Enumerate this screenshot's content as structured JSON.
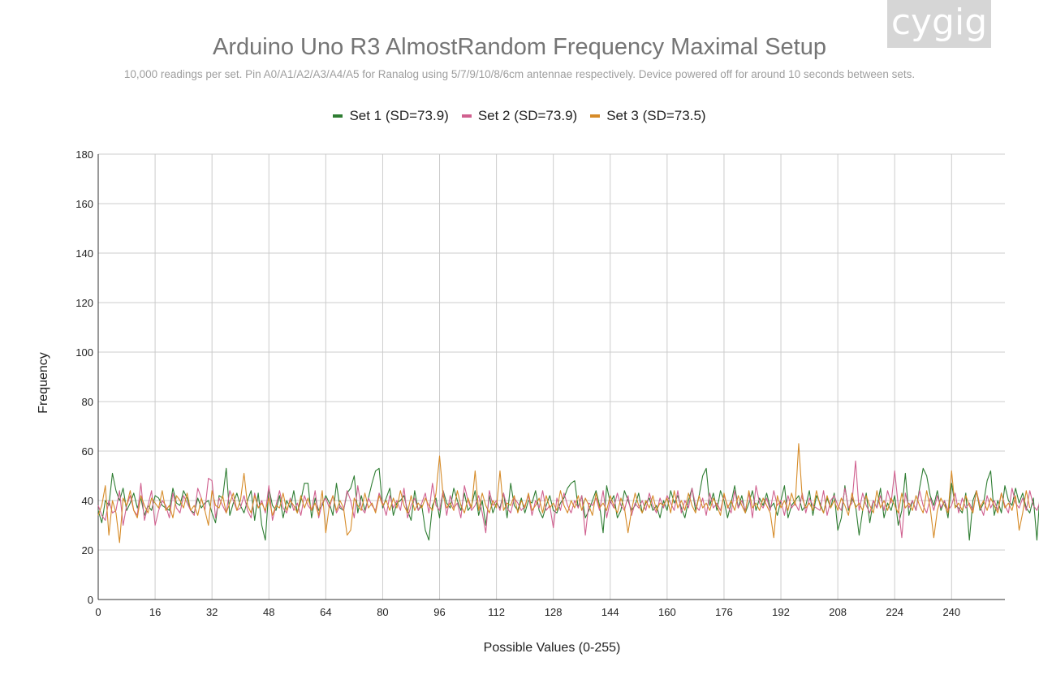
{
  "logo_text": "cygig",
  "chart_data": {
    "type": "line",
    "title": "Arduino Uno R3 AlmostRandom Frequency Maximal Setup",
    "subtitle": "10,000 readings per set. Pin A0/A1/A2/A3/A4/A5 for Ranalog using 5/7/9/10/8/6cm antennae respectively. Device powered off for around 10 seconds between sets.",
    "xlabel": "Possible Values (0-255)",
    "ylabel": "Frequency",
    "xlim": [
      0,
      255
    ],
    "ylim": [
      0,
      180
    ],
    "xticks": [
      0,
      16,
      32,
      48,
      64,
      80,
      96,
      112,
      128,
      144,
      160,
      176,
      192,
      208,
      224,
      240
    ],
    "yticks": [
      0,
      20,
      40,
      60,
      80,
      100,
      120,
      140,
      160,
      180
    ],
    "grid": true,
    "legend_position": "top",
    "colors": [
      "#2e7d32",
      "#d0608f",
      "#d68b28"
    ],
    "series": [
      {
        "name": "Set 1 (SD=73.9)",
        "color": "#2e7d32",
        "values": [
          36,
          31,
          40,
          38,
          51,
          44,
          40,
          45,
          36,
          39,
          43,
          37,
          41,
          34,
          38,
          36,
          42,
          41,
          38,
          37,
          36,
          45,
          39,
          38,
          44,
          41,
          36,
          35,
          41,
          37,
          39,
          40,
          35,
          31,
          42,
          41,
          53,
          34,
          39,
          43,
          38,
          35,
          40,
          44,
          32,
          43,
          30,
          24,
          45,
          38,
          36,
          42,
          33,
          40,
          37,
          44,
          35,
          40,
          47,
          47,
          33,
          41,
          36,
          38,
          42,
          39,
          34,
          47,
          37,
          36,
          43,
          45,
          50,
          35,
          42,
          36,
          41,
          47,
          52,
          53,
          37,
          41,
          45,
          34,
          39,
          40,
          42,
          36,
          32,
          44,
          36,
          38,
          28,
          24,
          38,
          41,
          33,
          44,
          39,
          37,
          45,
          40,
          36,
          43,
          36,
          38,
          44,
          34,
          40,
          30,
          42,
          35,
          39,
          37,
          43,
          33,
          47,
          38,
          36,
          41,
          35,
          40,
          39,
          44,
          36,
          33,
          38,
          42,
          36,
          35,
          39,
          41,
          45,
          47,
          48,
          37,
          42,
          33,
          36,
          40,
          44,
          38,
          27,
          46,
          39,
          42,
          33,
          36,
          44,
          40,
          36,
          38,
          43,
          35,
          39,
          41,
          36,
          38,
          33,
          40,
          36,
          44,
          39,
          42,
          37,
          33,
          40,
          45,
          36,
          42,
          50,
          53,
          38,
          43,
          36,
          44,
          40,
          33,
          39,
          46,
          37,
          42,
          35,
          39,
          44,
          36,
          41,
          38,
          43,
          37,
          39,
          34,
          40,
          46,
          33,
          38,
          40,
          42,
          36,
          38,
          44,
          34,
          42,
          39,
          35,
          41,
          37,
          43,
          28,
          33,
          46,
          36,
          41,
          38,
          26,
          36,
          43,
          31,
          40,
          37,
          45,
          33,
          39,
          36,
          42,
          30,
          36,
          51,
          34,
          40,
          36,
          45,
          53,
          50,
          42,
          38,
          44,
          36,
          40,
          33,
          47,
          38,
          37,
          35,
          43,
          24,
          40,
          44,
          36,
          39,
          48,
          52,
          34,
          40,
          35,
          46,
          40,
          38,
          45,
          39,
          43,
          37,
          35,
          41,
          24,
          46,
          45,
          44,
          39,
          43
        ],
        "note": "values estimated from plot"
      },
      {
        "name": "Set 2 (SD=73.9)",
        "color": "#d0608f",
        "values": [
          38,
          34,
          32,
          40,
          35,
          36,
          44,
          30,
          38,
          42,
          36,
          34,
          47,
          32,
          38,
          44,
          30,
          36,
          40,
          38,
          33,
          43,
          37,
          35,
          42,
          39,
          36,
          34,
          45,
          41,
          36,
          49,
          48,
          33,
          41,
          38,
          35,
          44,
          40,
          36,
          37,
          42,
          36,
          33,
          43,
          37,
          40,
          35,
          46,
          32,
          38,
          44,
          37,
          35,
          41,
          36,
          39,
          34,
          42,
          38,
          36,
          44,
          33,
          39,
          41,
          37,
          42,
          35,
          38,
          36,
          44,
          40,
          33,
          46,
          37,
          35,
          41,
          38,
          36,
          43,
          39,
          34,
          42,
          37,
          40,
          36,
          45,
          33,
          38,
          41,
          36,
          39,
          43,
          35,
          47,
          38,
          36,
          44,
          34,
          42,
          37,
          39,
          33,
          46,
          40,
          36,
          38,
          42,
          35,
          27,
          44,
          38,
          40,
          36,
          43,
          37,
          35,
          41,
          39,
          36,
          38,
          42,
          34,
          40,
          37,
          44,
          36,
          38,
          29,
          41,
          36,
          43,
          38,
          35,
          40,
          37,
          42,
          26,
          39,
          38,
          41,
          36,
          44,
          33,
          40,
          37,
          43,
          38,
          36,
          42,
          34,
          39,
          37,
          40,
          36,
          43,
          38,
          35,
          41,
          37,
          42,
          39,
          36,
          44,
          35,
          40,
          37,
          45,
          38,
          36,
          41,
          34,
          43,
          37,
          39,
          36,
          42,
          38,
          35,
          44,
          37,
          40,
          36,
          43,
          33,
          46,
          39,
          37,
          41,
          36,
          44,
          38,
          40,
          34,
          42,
          37,
          39,
          36,
          43,
          35,
          41,
          38,
          37,
          36,
          44,
          34,
          40,
          42,
          38,
          36,
          45,
          37,
          39,
          56,
          36,
          43,
          38,
          35,
          40,
          37,
          42,
          36,
          44,
          39,
          52,
          38,
          25,
          43,
          37,
          40,
          36,
          44,
          38,
          35,
          41,
          36,
          42,
          37,
          40,
          36,
          38,
          43,
          35,
          41,
          37,
          39,
          36,
          44,
          38,
          34,
          42,
          37,
          40,
          36,
          43,
          38,
          35,
          45,
          39,
          37,
          41,
          36,
          44,
          38,
          36,
          40
        ]
      },
      {
        "name": "Set 3 (SD=73.5)",
        "color": "#d68b28",
        "values": [
          34,
          38,
          46,
          26,
          40,
          35,
          23,
          41,
          38,
          44,
          36,
          33,
          42,
          38,
          35,
          41,
          39,
          37,
          44,
          36,
          38,
          33,
          42,
          40,
          37,
          43,
          36,
          38,
          34,
          41,
          36,
          30,
          44,
          38,
          37,
          42,
          35,
          39,
          43,
          36,
          40,
          51,
          38,
          35,
          42,
          37,
          39,
          36,
          41,
          34,
          38,
          37,
          43,
          36,
          40,
          38,
          35,
          42,
          37,
          41,
          36,
          39,
          34,
          44,
          27,
          38,
          42,
          36,
          40,
          37,
          26,
          28,
          41,
          38,
          36,
          43,
          37,
          39,
          35,
          42,
          38,
          40,
          36,
          41,
          37,
          44,
          38,
          35,
          42,
          36,
          39,
          37,
          41,
          38,
          36,
          43,
          58,
          42,
          37,
          39,
          36,
          44,
          38,
          35,
          41,
          37,
          52,
          36,
          43,
          38,
          35,
          40,
          37,
          52,
          36,
          39,
          38,
          42,
          35,
          40,
          37,
          43,
          36,
          38,
          41,
          35,
          42,
          37,
          39,
          36,
          44,
          38,
          35,
          40,
          37,
          42,
          36,
          41,
          38,
          34,
          43,
          37,
          39,
          36,
          42,
          38,
          35,
          41,
          37,
          27,
          36,
          43,
          38,
          35,
          40,
          37,
          42,
          36,
          39,
          38,
          41,
          35,
          44,
          37,
          40,
          36,
          43,
          38,
          35,
          42,
          37,
          39,
          36,
          41,
          38,
          34,
          43,
          37,
          40,
          36,
          42,
          38,
          35,
          44,
          37,
          39,
          36,
          41,
          38,
          35,
          25,
          42,
          37,
          40,
          36,
          43,
          38,
          63,
          41,
          37,
          39,
          36,
          44,
          38,
          35,
          42,
          37,
          40,
          36,
          41,
          38,
          34,
          43,
          37,
          39,
          36,
          42,
          38,
          35,
          44,
          37,
          40,
          36,
          41,
          38,
          35,
          43,
          37,
          39,
          36,
          42,
          38,
          35,
          44,
          37,
          25,
          36,
          41,
          38,
          35,
          52,
          37,
          39,
          36,
          42,
          38,
          35,
          44,
          37,
          40,
          36,
          41,
          38,
          35,
          43,
          37,
          39,
          36,
          42,
          28,
          35,
          44,
          37
        ]
      }
    ]
  }
}
